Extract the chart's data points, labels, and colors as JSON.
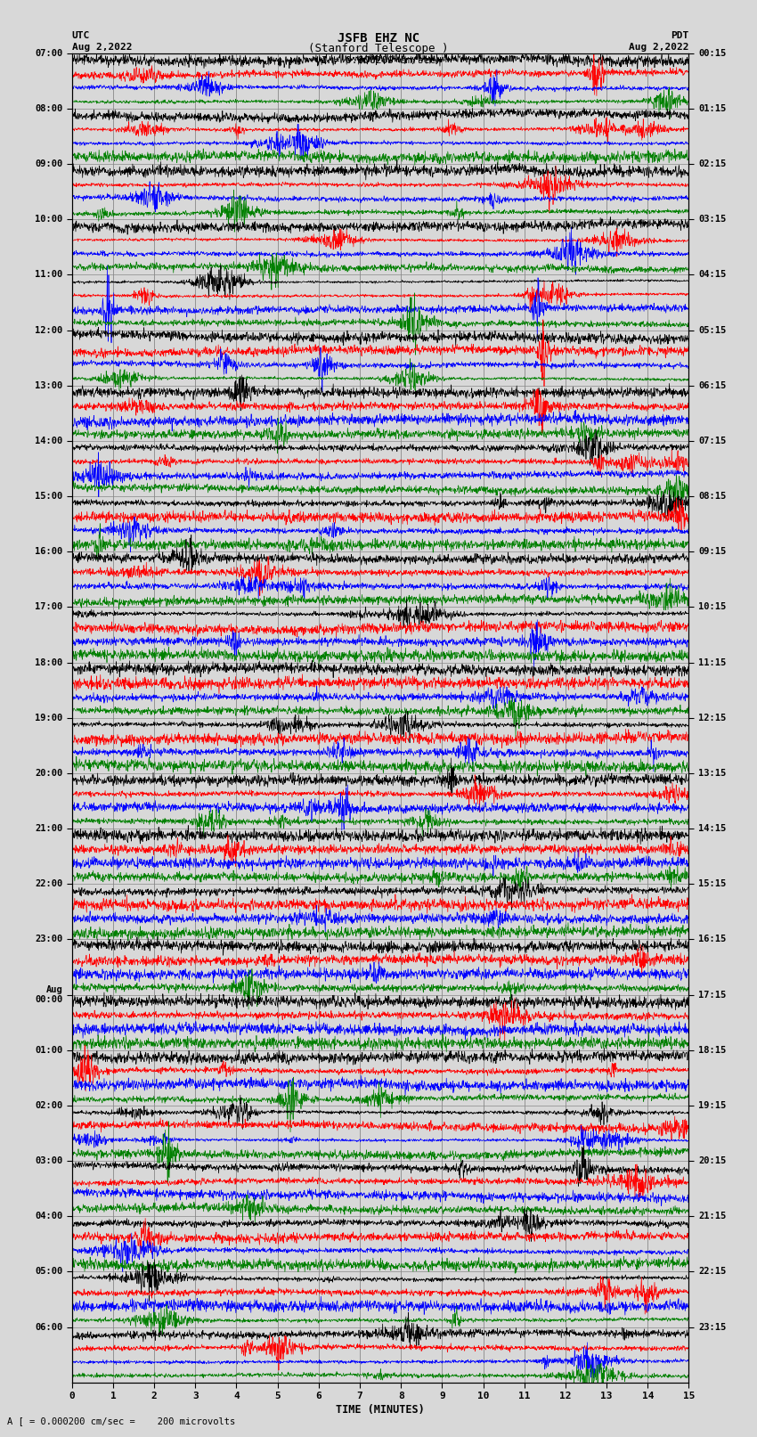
{
  "title_line1": "JSFB EHZ NC",
  "title_line2": "(Stanford Telescope )",
  "scale_label": "I = 0.000200 cm/sec",
  "footer_label": "A [ = 0.000200 cm/sec =    200 microvolts",
  "xlabel": "TIME (MINUTES)",
  "left_times": [
    "07:00",
    "08:00",
    "09:00",
    "10:00",
    "11:00",
    "12:00",
    "13:00",
    "14:00",
    "15:00",
    "16:00",
    "17:00",
    "18:00",
    "19:00",
    "20:00",
    "21:00",
    "22:00",
    "23:00",
    "Aug\n00:00",
    "01:00",
    "02:00",
    "03:00",
    "04:00",
    "05:00",
    "06:00"
  ],
  "right_times": [
    "00:15",
    "01:15",
    "02:15",
    "03:15",
    "04:15",
    "05:15",
    "06:15",
    "07:15",
    "08:15",
    "09:15",
    "10:15",
    "11:15",
    "12:15",
    "13:15",
    "14:15",
    "15:15",
    "16:15",
    "17:15",
    "18:15",
    "19:15",
    "20:15",
    "21:15",
    "22:15",
    "23:15"
  ],
  "colors": [
    "black",
    "red",
    "blue",
    "green"
  ],
  "n_rows": 96,
  "n_points": 1800,
  "x_min": 0,
  "x_max": 15,
  "bg_color": "#d8d8d8",
  "grid_color": "#888888",
  "seed": 42
}
